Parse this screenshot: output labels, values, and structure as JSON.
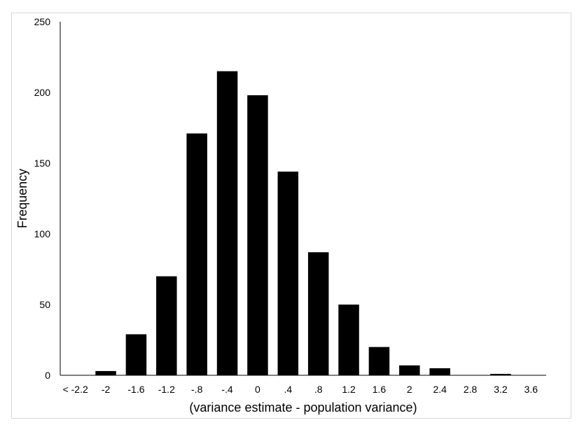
{
  "chart_data": {
    "type": "bar",
    "xlabel": "(variance estimate - population variance)",
    "ylabel": "Frequency",
    "categories": [
      "< -2.2",
      "-2",
      "-1.6",
      "-1.2",
      "-.8",
      "-.4",
      "0",
      ".4",
      ".8",
      "1.2",
      "1.6",
      "2",
      "2.4",
      "2.8",
      "3.2",
      "3.6"
    ],
    "values": [
      0,
      3,
      29,
      70,
      171,
      215,
      198,
      144,
      87,
      50,
      20,
      7,
      5,
      0,
      1,
      0
    ],
    "ylim": [
      0,
      250
    ],
    "yticks": [
      "0",
      "50",
      "100",
      "150",
      "200",
      "250"
    ],
    "grid": false,
    "legend": "none",
    "bar_color": "#000000"
  }
}
